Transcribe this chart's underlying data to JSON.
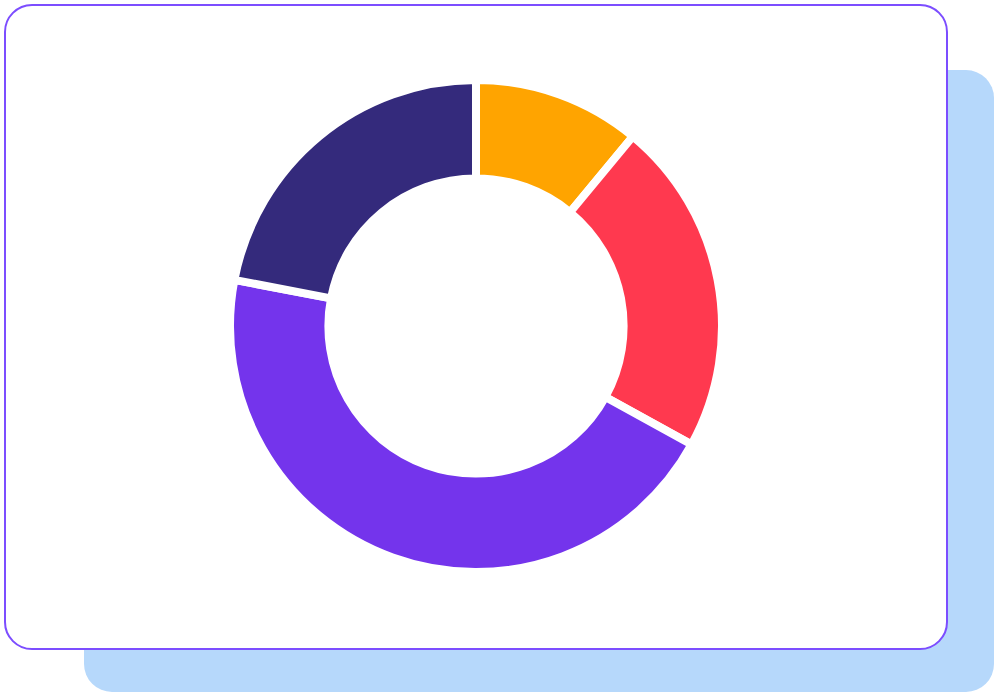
{
  "chart_data": {
    "type": "donut",
    "categories": [
      null,
      null,
      null,
      null
    ],
    "values": [
      11,
      22,
      45,
      22
    ],
    "colors": [
      "#ffa400",
      "#ff394f",
      "#7434ec",
      "#342a7c"
    ],
    "legend": false
  }
}
